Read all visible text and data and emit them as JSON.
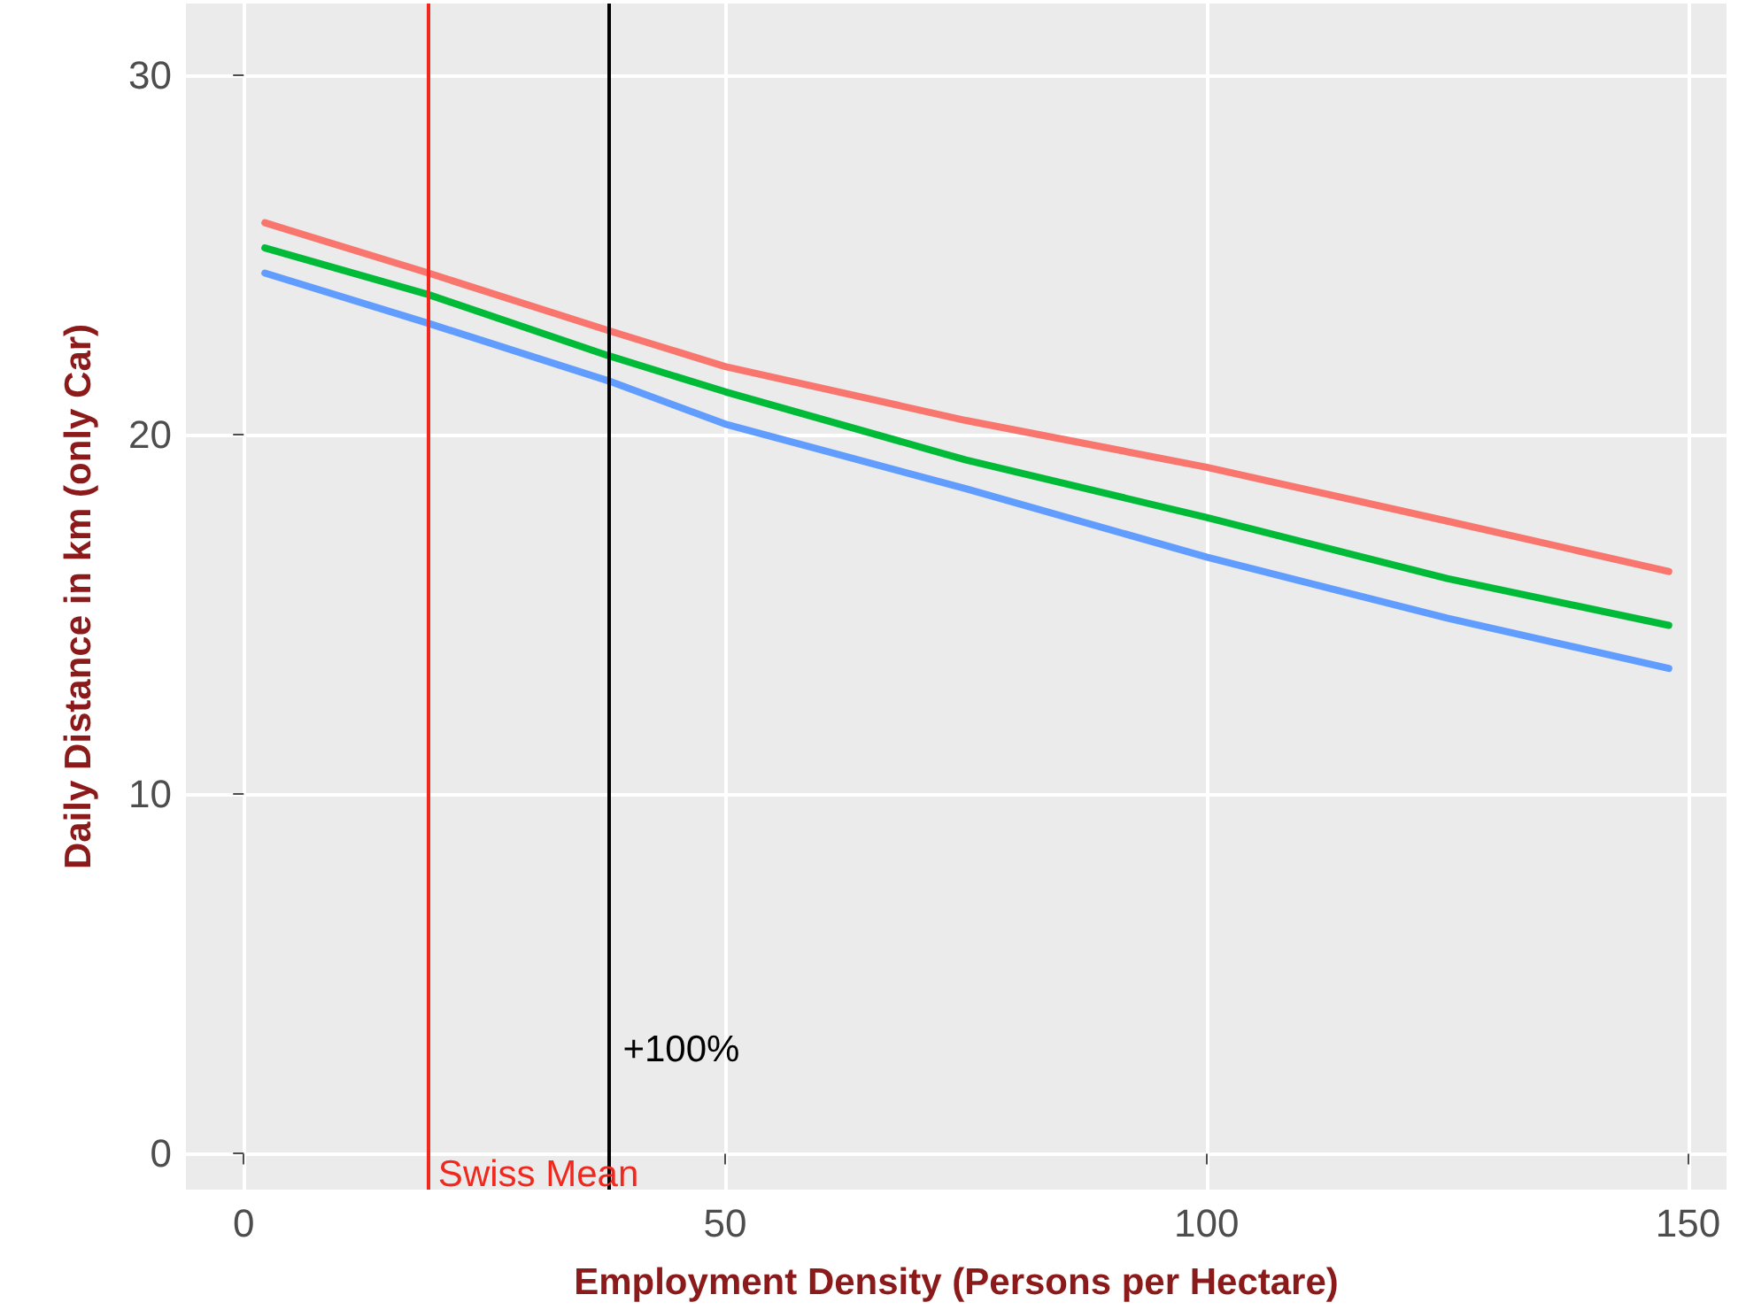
{
  "chart_data": {
    "type": "line",
    "xlabel": "Employment Density (Persons per Hectare)",
    "ylabel": "Daily Distance in km (only Car)",
    "xlim": [
      -6,
      154
    ],
    "xticks": [
      0,
      50,
      100,
      150
    ],
    "ylim": [
      -1,
      32
    ],
    "yticks": [
      0,
      10,
      20,
      30
    ],
    "grid": true,
    "marker": "none",
    "line_style": "solid",
    "series": [
      {
        "color": "#f8766d",
        "x": [
          2.2,
          19.2,
          37.9,
          50,
          75,
          100,
          125,
          148
        ],
        "values": [
          25.9,
          24.5,
          22.9,
          21.9,
          20.4,
          19.1,
          17.6,
          16.2
        ]
      },
      {
        "color": "#00ba38",
        "x": [
          2.2,
          19.2,
          37.9,
          50,
          75,
          100,
          125,
          148
        ],
        "values": [
          25.2,
          23.9,
          22.2,
          21.2,
          19.3,
          17.7,
          16.0,
          14.7
        ]
      },
      {
        "color": "#619cff",
        "x": [
          2.2,
          19.2,
          37.9,
          50,
          75,
          100,
          125,
          148
        ],
        "values": [
          24.5,
          23.1,
          21.5,
          20.3,
          18.5,
          16.6,
          14.9,
          13.5
        ]
      }
    ],
    "ref_lines": [
      {
        "axis": "x",
        "value": 19.2,
        "label": "Swiss Mean",
        "color": "#f0281e"
      },
      {
        "axis": "x",
        "value": 37.9,
        "color": "#000000"
      }
    ],
    "annotations": [
      {
        "text": "+100%",
        "x": 37.9,
        "y": 2.9
      }
    ]
  }
}
